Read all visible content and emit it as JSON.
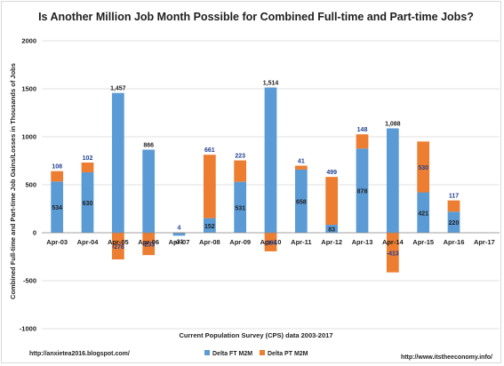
{
  "chart_data": {
    "type": "bar",
    "stacked": true,
    "title": "Is Another Million Job Month Possible for Combined Full-time and Part-time Jobs?",
    "xlabel": "Current Population Survey (CPS) data 2003-2017",
    "ylabel": "Combined Full-time and Part-time Job Gains/Losses in Thousands of Jobs",
    "ylim": [
      -1000,
      2000
    ],
    "yticks": [
      -1000,
      -500,
      0,
      500,
      1000,
      1500,
      2000
    ],
    "ytick_labels": [
      "-1000",
      "-500",
      "0",
      "500",
      "1000",
      "1500",
      "2000"
    ],
    "grid": true,
    "categories": [
      "Apr-03",
      "Apr-04",
      "Apr-05",
      "Apr-06",
      "Apr-07",
      "Apr-08",
      "Apr-09",
      "Apr-10",
      "Apr-11",
      "Apr-12",
      "Apr-13",
      "Apr-14",
      "Apr-15",
      "Apr-16",
      "Apr-17"
    ],
    "series": [
      {
        "name": "Delta FT M2M",
        "color": "#5b9bd5",
        "values": [
          534,
          630,
          1457,
          866,
          -31,
          152,
          531,
          1514,
          658,
          83,
          878,
          1088,
          421,
          220,
          null
        ],
        "labels": [
          "534",
          "630",
          "1,457",
          "866",
          "-31",
          "152",
          "531",
          "1,514",
          "658",
          "83",
          "878",
          "1,088",
          "421",
          "220",
          ""
        ]
      },
      {
        "name": "Delta PT M2M",
        "color": "#ed7d31",
        "values": [
          108,
          102,
          -278,
          -233,
          4,
          661,
          223,
          -194,
          41,
          499,
          148,
          -413,
          530,
          117,
          null
        ],
        "labels": [
          "108",
          "102",
          "-278",
          "-233",
          "4",
          "661",
          "223",
          "-194",
          "41",
          "499",
          "148",
          "-413",
          "530",
          "117",
          ""
        ]
      }
    ],
    "legend_position": "bottom"
  },
  "footer": {
    "left_url": "http://anxietea2016.blogspot.com/",
    "right_url": "http://www.itstheeconomy.info/"
  }
}
